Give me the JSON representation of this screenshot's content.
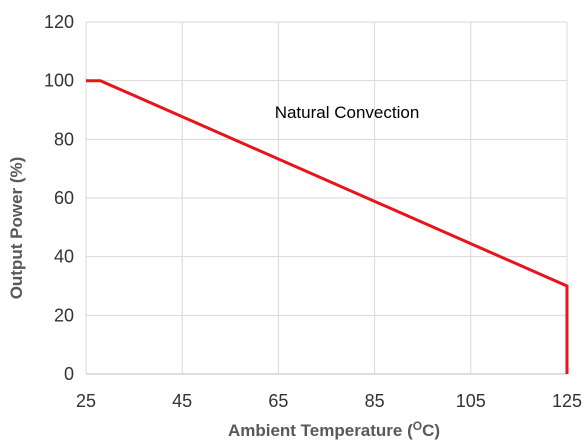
{
  "chart_data": {
    "type": "line",
    "title": "",
    "xlabel": "Ambient Temperature (",
    "xlabel_superscript": "O",
    "xlabel_suffix": "C)",
    "ylabel": "Output Power (%)",
    "xlim": [
      25,
      125
    ],
    "ylim": [
      0,
      120
    ],
    "x_ticks": [
      25,
      45,
      65,
      85,
      105,
      125
    ],
    "y_ticks": [
      0,
      20,
      40,
      60,
      80,
      100,
      120
    ],
    "grid": true,
    "annotation": "Natural Convection",
    "series": [
      {
        "color": "#e8141c",
        "x": [
          25,
          28,
          125,
          125
        ],
        "y": [
          100,
          100,
          30,
          0
        ]
      }
    ]
  },
  "colors": {
    "grid": "#d9d9d9",
    "axis": "#bfbfbf"
  }
}
